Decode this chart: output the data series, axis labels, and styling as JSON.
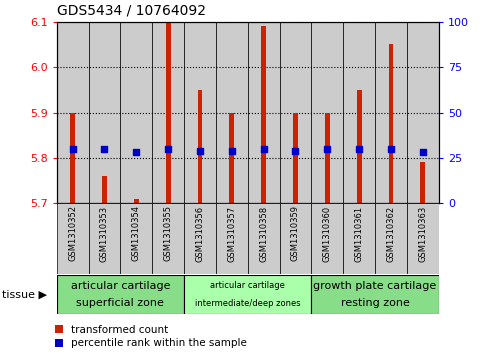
{
  "title": "GDS5434 / 10764092",
  "samples": [
    "GSM1310352",
    "GSM1310353",
    "GSM1310354",
    "GSM1310355",
    "GSM1310356",
    "GSM1310357",
    "GSM1310358",
    "GSM1310359",
    "GSM1310360",
    "GSM1310361",
    "GSM1310362",
    "GSM1310363"
  ],
  "transformed_counts": [
    5.9,
    5.76,
    5.71,
    6.1,
    5.95,
    5.9,
    6.09,
    5.9,
    5.9,
    5.95,
    6.05,
    5.79
  ],
  "percentile_ranks": [
    30,
    30,
    28,
    30,
    29,
    29,
    30,
    29,
    30,
    30,
    30,
    28
  ],
  "ylim": [
    5.7,
    6.1
  ],
  "yticks_left": [
    5.7,
    5.8,
    5.9,
    6.0,
    6.1
  ],
  "yticks_right": [
    0,
    25,
    50,
    75,
    100
  ],
  "bar_color": "#cc2200",
  "dot_color": "#0000cc",
  "cell_bg_color": "#cccccc",
  "tissue_groups": [
    {
      "label_line1": "articular cartilage",
      "label_line2": "superficial zone",
      "start": 0,
      "end": 4,
      "color": "#88dd88",
      "fontsize1": 8,
      "fontsize2": 8
    },
    {
      "label_line1": "articular cartilage",
      "label_line2": "intermediate/deep zones",
      "start": 4,
      "end": 8,
      "color": "#aaffaa",
      "fontsize1": 6,
      "fontsize2": 6
    },
    {
      "label_line1": "growth plate cartilage",
      "label_line2": "resting zone",
      "start": 8,
      "end": 12,
      "color": "#88dd88",
      "fontsize1": 8,
      "fontsize2": 8
    }
  ],
  "legend_red_label": "transformed count",
  "legend_blue_label": "percentile rank within the sample",
  "tissue_label": "tissue",
  "bar_bottom": 5.7,
  "bar_width": 0.15
}
